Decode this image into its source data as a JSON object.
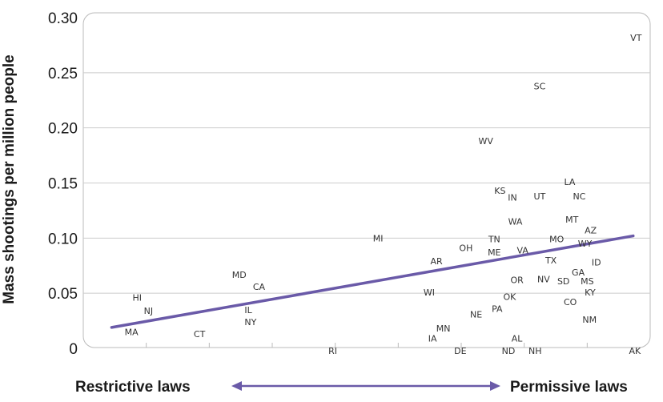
{
  "chart_data": {
    "type": "scatter",
    "title": "",
    "xlabel": "",
    "ylabel": "Mass shootings per million people",
    "ylim": [
      0,
      0.3
    ],
    "yticks": [
      "0",
      "0.05",
      "0.10",
      "0.15",
      "0.20",
      "0.25",
      "0.30"
    ],
    "x_left_label": "Restrictive laws",
    "x_right_label": "Permissive laws",
    "xlim": [
      0,
      100
    ],
    "grid": true,
    "trend_line": {
      "x": [
        5,
        97
      ],
      "y": [
        0.019,
        0.102
      ]
    },
    "points": [
      {
        "label": "VT",
        "x": 97.5,
        "y": 0.282
      },
      {
        "label": "SC",
        "x": 80.5,
        "y": 0.238
      },
      {
        "label": "WV",
        "x": 71,
        "y": 0.188
      },
      {
        "label": "LA",
        "x": 85.8,
        "y": 0.151
      },
      {
        "label": "KS",
        "x": 73.5,
        "y": 0.143
      },
      {
        "label": "UT",
        "x": 80.5,
        "y": 0.138
      },
      {
        "label": "NC",
        "x": 87.5,
        "y": 0.138
      },
      {
        "label": "IN",
        "x": 75.7,
        "y": 0.137
      },
      {
        "label": "WA",
        "x": 76.2,
        "y": 0.115
      },
      {
        "label": "MT",
        "x": 86.2,
        "y": 0.117
      },
      {
        "label": "AZ",
        "x": 89.5,
        "y": 0.107
      },
      {
        "label": "MI",
        "x": 52,
        "y": 0.1
      },
      {
        "label": "TN",
        "x": 72.5,
        "y": 0.099
      },
      {
        "label": "MO",
        "x": 83.5,
        "y": 0.099
      },
      {
        "label": "WY",
        "x": 88.5,
        "y": 0.095
      },
      {
        "label": "OH",
        "x": 67.5,
        "y": 0.091
      },
      {
        "label": "ME",
        "x": 72.5,
        "y": 0.087
      },
      {
        "label": "VA",
        "x": 77.5,
        "y": 0.089
      },
      {
        "label": "AR",
        "x": 62.3,
        "y": 0.079
      },
      {
        "label": "TX",
        "x": 82.5,
        "y": 0.08
      },
      {
        "label": "ID",
        "x": 90.5,
        "y": 0.078
      },
      {
        "label": "GA",
        "x": 87.3,
        "y": 0.069
      },
      {
        "label": "MD",
        "x": 27.5,
        "y": 0.067
      },
      {
        "label": "OR",
        "x": 76.5,
        "y": 0.062
      },
      {
        "label": "NV",
        "x": 81.2,
        "y": 0.063
      },
      {
        "label": "SD",
        "x": 84.7,
        "y": 0.061
      },
      {
        "label": "MS",
        "x": 88.9,
        "y": 0.061
      },
      {
        "label": "CA",
        "x": 31,
        "y": 0.056
      },
      {
        "label": "KY",
        "x": 89.4,
        "y": 0.051
      },
      {
        "label": "WI",
        "x": 61,
        "y": 0.051
      },
      {
        "label": "OK",
        "x": 75.2,
        "y": 0.047
      },
      {
        "label": "HI",
        "x": 9.5,
        "y": 0.046
      },
      {
        "label": "CO",
        "x": 85.9,
        "y": 0.042
      },
      {
        "label": "IL",
        "x": 29.1,
        "y": 0.035
      },
      {
        "label": "PA",
        "x": 73,
        "y": 0.036
      },
      {
        "label": "NJ",
        "x": 11.5,
        "y": 0.034
      },
      {
        "label": "NE",
        "x": 69.3,
        "y": 0.031
      },
      {
        "label": "NY",
        "x": 29.5,
        "y": 0.024
      },
      {
        "label": "NM",
        "x": 89.3,
        "y": 0.026
      },
      {
        "label": "MN",
        "x": 63.5,
        "y": 0.018
      },
      {
        "label": "MA",
        "x": 8.5,
        "y": 0.015
      },
      {
        "label": "CT",
        "x": 20.5,
        "y": 0.013
      },
      {
        "label": "IA",
        "x": 61.6,
        "y": 0.009
      },
      {
        "label": "AL",
        "x": 76.5,
        "y": 0.009
      },
      {
        "label": "RI",
        "x": 44,
        "y": -0.002
      },
      {
        "label": "DE",
        "x": 66.5,
        "y": -0.002
      },
      {
        "label": "ND",
        "x": 75,
        "y": -0.002
      },
      {
        "label": "NH",
        "x": 79.7,
        "y": -0.002
      },
      {
        "label": "AK",
        "x": 97.3,
        "y": -0.002
      }
    ],
    "colors": {
      "trend": "#6a5aa8",
      "arrow": "#6a5aa8",
      "grid": "#cccccc",
      "frame": "#bbbbbb",
      "text": "#1a1a1a"
    }
  }
}
